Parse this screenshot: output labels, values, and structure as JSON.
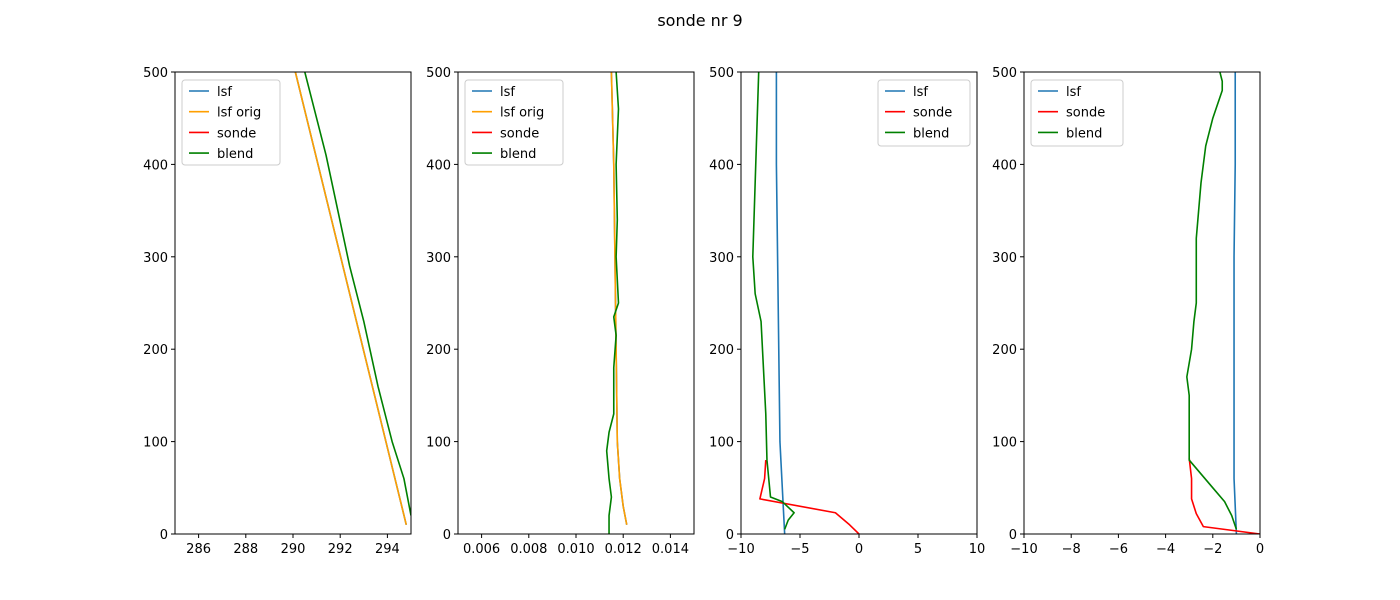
{
  "title": "sonde nr 9",
  "chart_data": [
    {
      "type": "line",
      "xlim": [
        285,
        295
      ],
      "ylim": [
        0,
        500
      ],
      "xticks": [
        286,
        288,
        290,
        292,
        294
      ],
      "xtick_labels": [
        "286",
        "288",
        "290",
        "292",
        "294"
      ],
      "yticks": [
        0,
        100,
        200,
        300,
        400,
        500
      ],
      "ytick_labels": [
        "0",
        "100",
        "200",
        "300",
        "400",
        "500"
      ],
      "legend": "top-left",
      "series": [
        {
          "name": "lsf",
          "color": "#1f77b4",
          "x": [
            294.8,
            290.1
          ],
          "y": [
            10,
            500
          ]
        },
        {
          "name": "lsf orig",
          "color": "#ff9f00",
          "x": [
            294.8,
            290.1
          ],
          "y": [
            10,
            500
          ]
        },
        {
          "name": "sonde",
          "color": "#ff0000",
          "x": [],
          "y": []
        },
        {
          "name": "blend",
          "color": "#008000",
          "x": [
            295.0,
            294.7,
            294.2,
            293.6,
            293.0,
            292.4,
            291.9,
            291.4,
            290.9,
            290.5
          ],
          "y": [
            20,
            60,
            100,
            160,
            230,
            290,
            350,
            410,
            460,
            500
          ]
        }
      ]
    },
    {
      "type": "line",
      "xlim": [
        0.005,
        0.015
      ],
      "ylim": [
        0,
        500
      ],
      "xticks": [
        0.006,
        0.008,
        0.01,
        0.012,
        0.014
      ],
      "xtick_labels": [
        "0.006",
        "0.008",
        "0.010",
        "0.012",
        "0.014"
      ],
      "yticks": [
        0,
        100,
        200,
        300,
        400,
        500
      ],
      "ytick_labels": [
        "0",
        "100",
        "200",
        "300",
        "400",
        "500"
      ],
      "legend": "top-left",
      "series": [
        {
          "name": "lsf",
          "color": "#1f77b4",
          "x": [
            0.01215,
            0.012,
            0.01185,
            0.01175,
            0.0117,
            0.01165,
            0.0116,
            0.01155,
            0.0115
          ],
          "y": [
            10,
            30,
            60,
            100,
            200,
            300,
            400,
            450,
            500
          ]
        },
        {
          "name": "lsf orig",
          "color": "#ff9f00",
          "x": [
            0.01215,
            0.012,
            0.01185,
            0.01175,
            0.0117,
            0.01165,
            0.0116,
            0.01155,
            0.0115
          ],
          "y": [
            10,
            30,
            60,
            100,
            200,
            300,
            400,
            450,
            500
          ]
        },
        {
          "name": "sonde",
          "color": "#ff0000",
          "x": [],
          "y": []
        },
        {
          "name": "blend",
          "color": "#008000",
          "x": [
            0.0114,
            0.0114,
            0.0115,
            0.0114,
            0.0113,
            0.0114,
            0.0116,
            0.0116,
            0.0117,
            0.0116,
            0.0118,
            0.0117,
            0.01175,
            0.0117,
            0.0118,
            0.0117
          ],
          "y": [
            0,
            20,
            40,
            60,
            90,
            110,
            130,
            180,
            215,
            235,
            250,
            300,
            340,
            400,
            460,
            500
          ]
        }
      ]
    },
    {
      "type": "line",
      "xlim": [
        -10,
        10
      ],
      "ylim": [
        0,
        500
      ],
      "xticks": [
        -10,
        -5,
        0,
        5,
        10
      ],
      "xtick_labels": [
        "−10",
        "−5",
        "0",
        "5",
        "10"
      ],
      "yticks": [
        0,
        100,
        200,
        300,
        400,
        500
      ],
      "ytick_labels": [
        "0",
        "100",
        "200",
        "300",
        "400",
        "500"
      ],
      "legend": "top-right",
      "series": [
        {
          "name": "lsf",
          "color": "#1f77b4",
          "x": [
            -6.3,
            -6.5,
            -6.7,
            -6.8,
            -6.9,
            -7.0,
            -7.0
          ],
          "y": [
            0,
            50,
            100,
            200,
            300,
            400,
            500
          ]
        },
        {
          "name": "sonde",
          "color": "#ff0000",
          "x": [
            0.0,
            -0.8,
            -2.0,
            -8.4,
            -8.0,
            -7.9
          ],
          "y": [
            0,
            10,
            23,
            38,
            60,
            80
          ]
        },
        {
          "name": "blend",
          "color": "#008000",
          "x": [
            -6.3,
            -6.0,
            -5.5,
            -6.5,
            -7.5,
            -7.8,
            -7.9,
            -8.1,
            -8.3,
            -8.8,
            -9.0,
            -8.8,
            -8.6,
            -8.5
          ],
          "y": [
            5,
            15,
            23,
            35,
            40,
            80,
            130,
            180,
            230,
            260,
            300,
            380,
            460,
            500
          ]
        }
      ]
    },
    {
      "type": "line",
      "xlim": [
        -10,
        0
      ],
      "ylim": [
        0,
        500
      ],
      "xticks": [
        -10,
        -8,
        -6,
        -4,
        -2,
        0
      ],
      "xtick_labels": [
        "−10",
        "−8",
        "−6",
        "−4",
        "−2",
        "0"
      ],
      "yticks": [
        0,
        100,
        200,
        300,
        400,
        500
      ],
      "ytick_labels": [
        "0",
        "100",
        "200",
        "300",
        "400",
        "500"
      ],
      "legend": "top-left",
      "series": [
        {
          "name": "lsf",
          "color": "#1f77b4",
          "x": [
            -1.0,
            -1.05,
            -1.1,
            -1.1,
            -1.1,
            -1.1,
            -1.05,
            -1.05
          ],
          "y": [
            0,
            30,
            60,
            100,
            200,
            300,
            400,
            500
          ]
        },
        {
          "name": "sonde",
          "color": "#ff0000",
          "x": [
            0.0,
            -2.4,
            -2.7,
            -2.9,
            -2.9,
            -3.0
          ],
          "y": [
            0,
            8,
            22,
            38,
            60,
            82
          ]
        },
        {
          "name": "blend",
          "color": "#008000",
          "x": [
            -1.0,
            -1.2,
            -1.5,
            -2.0,
            -2.5,
            -3.0,
            -3.0,
            -3.1,
            -2.9,
            -2.8,
            -2.7,
            -2.7,
            -2.6,
            -2.5,
            -2.3,
            -2.0,
            -1.6,
            -1.6,
            -1.7
          ],
          "y": [
            5,
            20,
            35,
            50,
            65,
            80,
            150,
            170,
            200,
            230,
            250,
            320,
            350,
            380,
            420,
            450,
            480,
            490,
            500
          ]
        }
      ]
    }
  ]
}
